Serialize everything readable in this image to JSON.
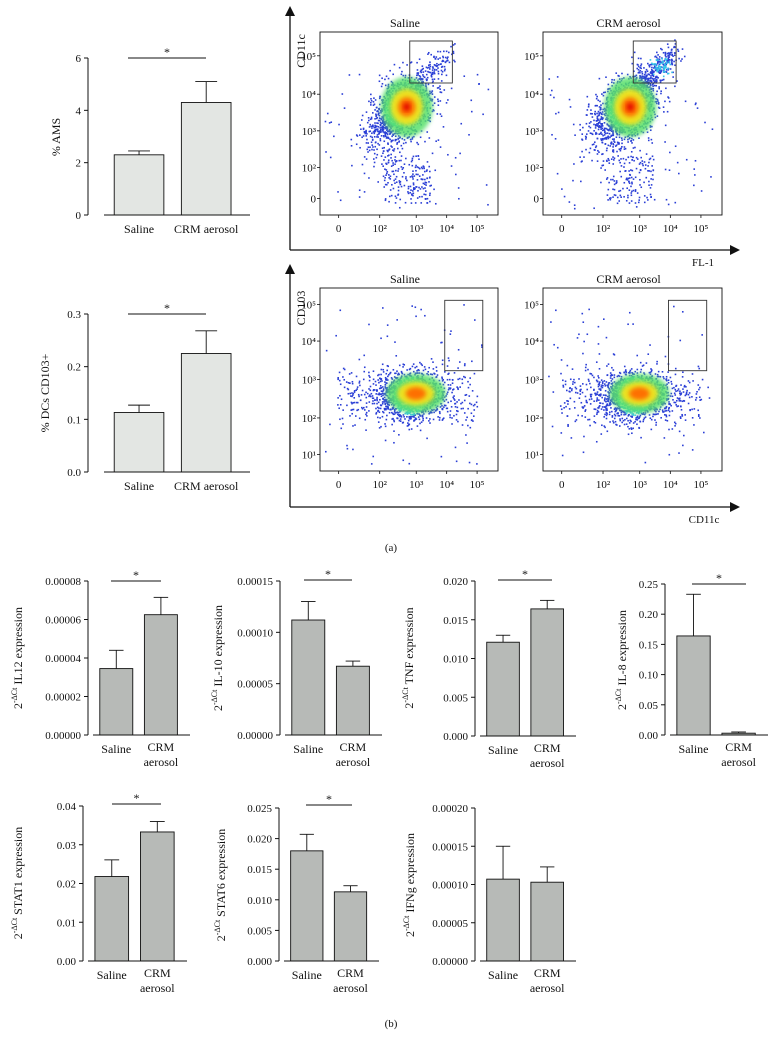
{
  "colors": {
    "bar_a": "#e3e6e3",
    "bar_b": "#b7bab7",
    "axis": "#111111",
    "flow_low": "#2b3fd6",
    "flow_mid": "#35c4e8",
    "flow_mid2": "#58e06a",
    "flow_high": "#f4e21a",
    "flow_peak": "#ff6a00",
    "flow_core": "#e00000"
  },
  "panel_labels": {
    "a": "(a)",
    "b": "(b)"
  },
  "flow_axes": {
    "top": {
      "x_label": "FL-1",
      "y_label": "CD11c"
    },
    "bottom": {
      "x_label": "CD11c",
      "y_label": "CD103"
    }
  },
  "chart_data": [
    {
      "id": "ams",
      "panel": "a",
      "type": "bar",
      "categories": [
        "Saline",
        "CRM aerosol"
      ],
      "values": [
        2.3,
        4.3
      ],
      "errors": [
        0.15,
        0.8
      ],
      "ylabel": "% AMS",
      "ylim": [
        0,
        6
      ],
      "yticks": [
        "0",
        "2",
        "4",
        "6"
      ],
      "significance": "*"
    },
    {
      "id": "dcs",
      "panel": "a",
      "type": "bar",
      "categories": [
        "Saline",
        "CRM aerosol"
      ],
      "values": [
        0.113,
        0.225
      ],
      "errors": [
        0.014,
        0.043
      ],
      "ylabel": "% DCs CD103+",
      "ylim": [
        0,
        0.3
      ],
      "yticks": [
        "0.0",
        "0.1",
        "0.2",
        "0.3"
      ],
      "significance": "*"
    },
    {
      "id": "il12",
      "panel": "b",
      "type": "bar",
      "categories": [
        "Saline",
        "CRM aerosol"
      ],
      "values": [
        3.45e-05,
        6.25e-05
      ],
      "errors": [
        9.5e-06,
        9e-06
      ],
      "ylabel_prefix": "2",
      "ylabel_sup": "-ΔCt",
      "ylabel_main": " IL12 expression",
      "ylim": [
        0,
        8e-05
      ],
      "yticks": [
        "0.00000",
        "0.00002",
        "0.00004",
        "0.00006",
        "0.00008"
      ],
      "significance": "*"
    },
    {
      "id": "il10",
      "panel": "b",
      "type": "bar",
      "categories": [
        "Saline",
        "CRM aerosol"
      ],
      "values": [
        0.000112,
        6.7e-05
      ],
      "errors": [
        1.8e-05,
        5e-06
      ],
      "ylabel_prefix": "2",
      "ylabel_sup": "-ΔCt",
      "ylabel_main": " IL-10 expression",
      "ylim": [
        0,
        0.00015
      ],
      "yticks": [
        "0.00000",
        "0.00005",
        "0.00010",
        "0.00015"
      ],
      "significance": "*"
    },
    {
      "id": "tnf",
      "panel": "b",
      "type": "bar",
      "categories": [
        "Saline",
        "CRM aerosol"
      ],
      "values": [
        0.0121,
        0.0164
      ],
      "errors": [
        0.0009,
        0.0011
      ],
      "ylabel_prefix": "2",
      "ylabel_sup": "-ΔCt",
      "ylabel_main": " TNF expression",
      "ylim": [
        0,
        0.02
      ],
      "yticks": [
        "0.000",
        "0.005",
        "0.010",
        "0.015",
        "0.020"
      ],
      "significance": "*"
    },
    {
      "id": "il8",
      "panel": "b",
      "type": "bar",
      "categories": [
        "Saline",
        "CRM aerosol"
      ],
      "values": [
        0.164,
        0.003
      ],
      "errors": [
        0.069,
        0.002
      ],
      "ylabel_prefix": "2",
      "ylabel_sup": "-ΔCt",
      "ylabel_main": " IL-8 expression",
      "ylim": [
        0,
        0.25
      ],
      "yticks": [
        "0.00",
        "0.05",
        "0.10",
        "0.15",
        "0.20",
        "0.25"
      ],
      "significance": "*"
    },
    {
      "id": "stat1",
      "panel": "b",
      "type": "bar",
      "categories": [
        "Saline",
        "CRM aerosol"
      ],
      "values": [
        0.0218,
        0.0333
      ],
      "errors": [
        0.0043,
        0.0027
      ],
      "ylabel_prefix": "2",
      "ylabel_sup": "-ΔCt",
      "ylabel_main": " STAT1 expression",
      "ylim": [
        0,
        0.04
      ],
      "yticks": [
        "0.00",
        "0.01",
        "0.02",
        "0.03",
        "0.04"
      ],
      "significance": "*"
    },
    {
      "id": "stat6",
      "panel": "b",
      "type": "bar",
      "categories": [
        "Saline",
        "CRM aerosol"
      ],
      "values": [
        0.018,
        0.0113
      ],
      "errors": [
        0.0027,
        0.001
      ],
      "ylabel_prefix": "2",
      "ylabel_sup": "-ΔCt",
      "ylabel_main": " STAT6 expression",
      "ylim": [
        0,
        0.025
      ],
      "yticks": [
        "0.000",
        "0.005",
        "0.010",
        "0.015",
        "0.020",
        "0.025"
      ],
      "significance": "*"
    },
    {
      "id": "ifng",
      "panel": "b",
      "type": "bar",
      "categories": [
        "Saline",
        "CRM aerosol"
      ],
      "values": [
        0.000107,
        0.000103
      ],
      "errors": [
        4.3e-05,
        2e-05
      ],
      "ylabel_prefix": "2",
      "ylabel_sup": "-ΔCt",
      "ylabel_main": " IFNg expression",
      "ylim": [
        0,
        0.0002
      ],
      "yticks": [
        "0.00000",
        "0.00005",
        "0.00010",
        "0.00015",
        "0.00020"
      ],
      "significance": ""
    },
    {
      "id": "flow_fl1_saline",
      "panel": "a",
      "type": "scatter",
      "title": "Saline",
      "xlabel": "FL-1",
      "ylabel": "CD11c",
      "x_ticks": [
        "0",
        "10²",
        "10³",
        "10⁴",
        "10⁵"
      ],
      "y_ticks": [
        "0",
        "10²",
        "10³",
        "10⁴",
        "10⁵"
      ],
      "population_center": [
        2.3,
        2.9
      ],
      "gate": {
        "x_range": [
          2.6,
          4.0
        ],
        "y_range": [
          3.8,
          5.2
        ]
      },
      "extension": "weak"
    },
    {
      "id": "flow_fl1_crm",
      "panel": "a",
      "type": "scatter",
      "title": "CRM aerosol",
      "xlabel": "FL-1",
      "ylabel": "CD11c",
      "x_ticks": [
        "0",
        "10²",
        "10³",
        "10⁴",
        "10⁵"
      ],
      "y_ticks": [
        "0",
        "10²",
        "10³",
        "10⁴",
        "10⁵"
      ],
      "population_center": [
        2.3,
        2.9
      ],
      "gate": {
        "x_range": [
          2.6,
          4.0
        ],
        "y_range": [
          3.8,
          5.2
        ]
      },
      "extension": "strong"
    },
    {
      "id": "flow_cd11c_saline",
      "panel": "a",
      "type": "scatter",
      "title": "Saline",
      "xlabel": "CD11c",
      "ylabel": "CD103",
      "x_ticks": [
        "0",
        "10²",
        "10³",
        "10⁴",
        "10⁵"
      ],
      "y_ticks": [
        "10¹",
        "10²",
        "10³",
        "10⁴",
        "10⁵"
      ],
      "population_center": [
        2.6,
        2.6
      ],
      "gate": {
        "x_range": [
          3.75,
          5.0
        ],
        "y_range": [
          3.3,
          5.3
        ]
      },
      "extension": "none"
    },
    {
      "id": "flow_cd11c_crm",
      "panel": "a",
      "type": "scatter",
      "title": "CRM aerosol",
      "xlabel": "CD11c",
      "ylabel": "CD103",
      "x_ticks": [
        "0",
        "10²",
        "10³",
        "10⁴",
        "10⁵"
      ],
      "y_ticks": [
        "10¹",
        "10²",
        "10³",
        "10⁴",
        "10⁵"
      ],
      "population_center": [
        2.6,
        2.6
      ],
      "gate": {
        "x_range": [
          3.75,
          5.0
        ],
        "y_range": [
          3.3,
          5.3
        ]
      },
      "extension": "none"
    }
  ]
}
